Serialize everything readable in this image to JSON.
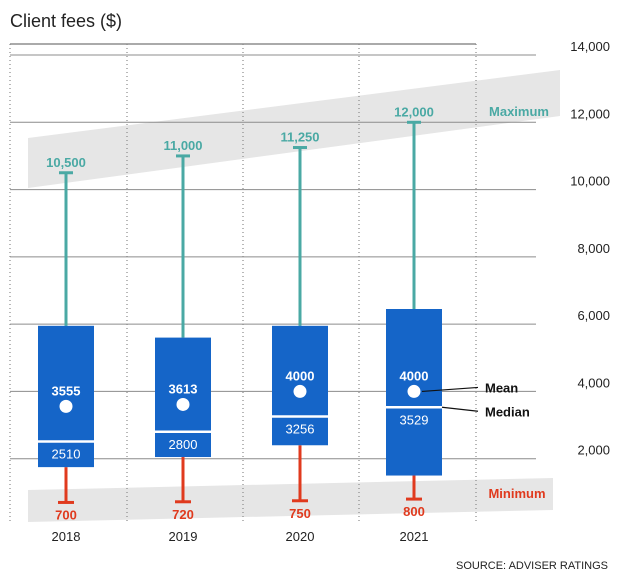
{
  "chart_data": {
    "type": "box",
    "title": "Client fees ($)",
    "categories": [
      "2018",
      "2019",
      "2020",
      "2021"
    ],
    "yticks": [
      "2,000",
      "4,000",
      "6,000",
      "8,000",
      "10,000",
      "12,000",
      "14,000"
    ],
    "ylim": [
      0,
      14000
    ],
    "boxes": [
      {
        "category": "2018",
        "min": 700,
        "q1": 1750,
        "median": 2510,
        "q3": 5950,
        "max": 10500,
        "mean": 3555,
        "min_label": "700",
        "max_label": "10,500",
        "median_label": "2510",
        "mean_label": "3555"
      },
      {
        "category": "2019",
        "min": 720,
        "q1": 2050,
        "median": 2800,
        "q3": 5600,
        "max": 11000,
        "mean": 3613,
        "min_label": "720",
        "max_label": "11,000",
        "median_label": "2800",
        "mean_label": "3613"
      },
      {
        "category": "2020",
        "min": 750,
        "q1": 2400,
        "median": 3256,
        "q3": 5950,
        "max": 11250,
        "mean": 4000,
        "min_label": "750",
        "max_label": "11,250",
        "median_label": "3256",
        "mean_label": "4000"
      },
      {
        "category": "2021",
        "min": 800,
        "q1": 1500,
        "median": 3529,
        "q3": 6450,
        "max": 12000,
        "mean": 4000,
        "min_label": "800",
        "max_label": "12,000",
        "median_label": "3529",
        "mean_label": "4000"
      }
    ],
    "bands": {
      "maximum": "Maximum",
      "minimum": "Minimum"
    },
    "legend": {
      "mean": "Mean",
      "median": "Median"
    },
    "source": "SOURCE: ADVISER RATINGS",
    "colors": {
      "box": "#1565c8",
      "whisker_max": "#4aa9a4",
      "whisker_min": "#e03a1e",
      "band": "#e6e6e6",
      "grid": "#8c8c8c"
    },
    "grid": true
  }
}
